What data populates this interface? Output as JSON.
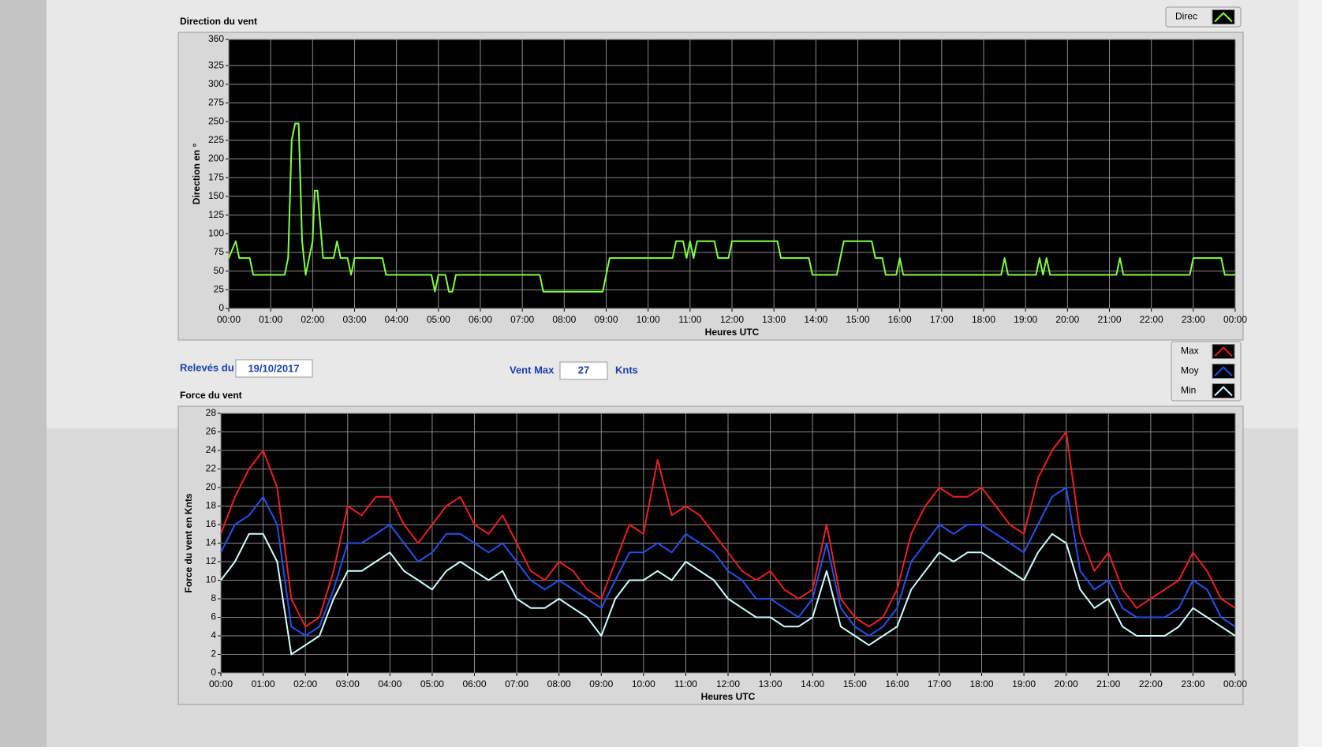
{
  "chart_data": [
    {
      "type": "line",
      "title": "Direction du vent",
      "xlabel": "Heures UTC",
      "ylabel": "Direction en °",
      "x": [
        0,
        10,
        15,
        30,
        35,
        80,
        85,
        90,
        95,
        100,
        105,
        110,
        115,
        120,
        123,
        127,
        135,
        150,
        155,
        160,
        170,
        175,
        180,
        220,
        225,
        290,
        295,
        300,
        310,
        315,
        320,
        325,
        445,
        450,
        535,
        545,
        635,
        640,
        650,
        655,
        660,
        665,
        670,
        695,
        700,
        715,
        720,
        785,
        790,
        830,
        835,
        870,
        875,
        880,
        920,
        925,
        935,
        940,
        955,
        960,
        965,
        1105,
        1110,
        1115,
        1155,
        1160,
        1165,
        1170,
        1175,
        1270,
        1275,
        1280,
        1375,
        1380,
        1420,
        1425,
        1440
      ],
      "series": [
        {
          "name": "Direc",
          "color": "#80ff40",
          "values": [
            67.5,
            90,
            67.5,
            67.5,
            45,
            45,
            67.5,
            225,
            247.5,
            247.5,
            90,
            45,
            67.5,
            90,
            157.5,
            157.5,
            67.5,
            67.5,
            90,
            67.5,
            67.5,
            45,
            67.5,
            67.5,
            45,
            45,
            22.5,
            45,
            45,
            22.5,
            22.5,
            45,
            45,
            22.5,
            22.5,
            67.5,
            67.5,
            90,
            90,
            67.5,
            90,
            67.5,
            90,
            90,
            67.5,
            67.5,
            90,
            90,
            67.5,
            67.5,
            45,
            45,
            67.5,
            90,
            90,
            67.5,
            67.5,
            45,
            45,
            67.5,
            45,
            45,
            67.5,
            45,
            45,
            67.5,
            45,
            67.5,
            45,
            45,
            67.5,
            45,
            45,
            67.5,
            67.5,
            45,
            45
          ]
        }
      ],
      "xlim": [
        0,
        1440
      ],
      "xticks": [
        {
          "value": 0,
          "label": "00:00"
        },
        {
          "value": 60,
          "label": "01:00"
        },
        {
          "value": 120,
          "label": "02:00"
        },
        {
          "value": 180,
          "label": "03:00"
        },
        {
          "value": 240,
          "label": "04:00"
        },
        {
          "value": 300,
          "label": "05:00"
        },
        {
          "value": 360,
          "label": "06:00"
        },
        {
          "value": 420,
          "label": "07:00"
        },
        {
          "value": 480,
          "label": "08:00"
        },
        {
          "value": 540,
          "label": "09:00"
        },
        {
          "value": 600,
          "label": "10:00"
        },
        {
          "value": 660,
          "label": "11:00"
        },
        {
          "value": 720,
          "label": "12:00"
        },
        {
          "value": 780,
          "label": "13:00"
        },
        {
          "value": 840,
          "label": "14:00"
        },
        {
          "value": 900,
          "label": "15:00"
        },
        {
          "value": 960,
          "label": "16:00"
        },
        {
          "value": 1020,
          "label": "17:00"
        },
        {
          "value": 1080,
          "label": "18:00"
        },
        {
          "value": 1140,
          "label": "19:00"
        },
        {
          "value": 1200,
          "label": "20:00"
        },
        {
          "value": 1260,
          "label": "21:00"
        },
        {
          "value": 1320,
          "label": "22:00"
        },
        {
          "value": 1380,
          "label": "23:00"
        },
        {
          "value": 1440,
          "label": "00:00"
        }
      ],
      "ylim": [
        0,
        360
      ],
      "yticks": [
        0,
        25,
        50,
        75,
        100,
        125,
        150,
        175,
        200,
        225,
        250,
        275,
        300,
        325,
        360
      ],
      "grid": true
    },
    {
      "type": "line",
      "title": "Force du vent",
      "xlabel": "Heures UTC",
      "ylabel": "Force du vent en Knts",
      "x": [
        0,
        20,
        40,
        60,
        80,
        100,
        120,
        140,
        160,
        180,
        200,
        220,
        240,
        260,
        280,
        300,
        320,
        340,
        360,
        380,
        400,
        420,
        440,
        460,
        480,
        500,
        520,
        540,
        560,
        580,
        600,
        620,
        640,
        660,
        680,
        700,
        720,
        740,
        760,
        780,
        800,
        820,
        840,
        860,
        880,
        900,
        920,
        940,
        960,
        980,
        1000,
        1020,
        1040,
        1060,
        1080,
        1100,
        1120,
        1140,
        1160,
        1180,
        1200,
        1220,
        1240,
        1260,
        1280,
        1300,
        1320,
        1340,
        1360,
        1380,
        1400,
        1420,
        1440
      ],
      "series": [
        {
          "name": "Max",
          "color": "#e82020",
          "values": [
            15,
            19,
            22,
            24,
            20,
            8,
            5,
            6,
            11,
            18,
            17,
            19,
            19,
            16,
            14,
            16,
            18,
            19,
            16,
            15,
            17,
            14,
            11,
            10,
            12,
            11,
            9,
            8,
            12,
            16,
            15,
            23,
            17,
            18,
            17,
            15,
            13,
            11,
            10,
            11,
            9,
            8,
            9,
            16,
            8,
            6,
            5,
            6,
            9,
            15,
            18,
            20,
            19,
            19,
            20,
            18,
            16,
            15,
            21,
            24,
            26,
            15,
            11,
            13,
            9,
            7,
            8,
            9,
            10,
            13,
            11,
            8,
            7
          ]
        },
        {
          "name": "Moy",
          "color": "#2850e8",
          "values": [
            13,
            16,
            17,
            19,
            16,
            5,
            4,
            5,
            9,
            14,
            14,
            15,
            16,
            14,
            12,
            13,
            15,
            15,
            14,
            13,
            14,
            12,
            10,
            9,
            10,
            9,
            8,
            7,
            10,
            13,
            13,
            14,
            13,
            15,
            14,
            13,
            11,
            10,
            8,
            8,
            7,
            6,
            8,
            14,
            7,
            5,
            4,
            5,
            7,
            12,
            14,
            16,
            15,
            16,
            16,
            15,
            14,
            13,
            16,
            19,
            20,
            11,
            9,
            10,
            7,
            6,
            6,
            6,
            7,
            10,
            9,
            6,
            5
          ]
        },
        {
          "name": "Min",
          "color": "#d0ffff",
          "values": [
            10,
            12,
            15,
            15,
            12,
            2,
            3,
            4,
            8,
            11,
            11,
            12,
            13,
            11,
            10,
            9,
            11,
            12,
            11,
            10,
            11,
            8,
            7,
            7,
            8,
            7,
            6,
            4,
            8,
            10,
            10,
            11,
            10,
            12,
            11,
            10,
            8,
            7,
            6,
            6,
            5,
            5,
            6,
            11,
            5,
            4,
            3,
            4,
            5,
            9,
            11,
            13,
            12,
            13,
            13,
            12,
            11,
            10,
            13,
            15,
            14,
            9,
            7,
            8,
            5,
            4,
            4,
            4,
            5,
            7,
            6,
            5,
            4
          ]
        }
      ],
      "xlim": [
        0,
        1440
      ],
      "xticks": [
        {
          "value": 0,
          "label": "00:00"
        },
        {
          "value": 60,
          "label": "01:00"
        },
        {
          "value": 120,
          "label": "02:00"
        },
        {
          "value": 180,
          "label": "03:00"
        },
        {
          "value": 240,
          "label": "04:00"
        },
        {
          "value": 300,
          "label": "05:00"
        },
        {
          "value": 360,
          "label": "06:00"
        },
        {
          "value": 420,
          "label": "07:00"
        },
        {
          "value": 480,
          "label": "08:00"
        },
        {
          "value": 540,
          "label": "09:00"
        },
        {
          "value": 600,
          "label": "10:00"
        },
        {
          "value": 660,
          "label": "11:00"
        },
        {
          "value": 720,
          "label": "12:00"
        },
        {
          "value": 780,
          "label": "13:00"
        },
        {
          "value": 840,
          "label": "14:00"
        },
        {
          "value": 900,
          "label": "15:00"
        },
        {
          "value": 960,
          "label": "16:00"
        },
        {
          "value": 1020,
          "label": "17:00"
        },
        {
          "value": 1080,
          "label": "18:00"
        },
        {
          "value": 1140,
          "label": "19:00"
        },
        {
          "value": 1200,
          "label": "20:00"
        },
        {
          "value": 1260,
          "label": "21:00"
        },
        {
          "value": 1320,
          "label": "22:00"
        },
        {
          "value": 1380,
          "label": "23:00"
        },
        {
          "value": 1440,
          "label": "00:00"
        }
      ],
      "ylim": [
        0,
        28
      ],
      "yticks": [
        0,
        2,
        4,
        6,
        8,
        10,
        12,
        14,
        16,
        18,
        20,
        22,
        24,
        26,
        28
      ],
      "grid": true
    }
  ],
  "form": {
    "date_label": "Relevés du",
    "date": "19/10/2017",
    "max_label": "Vent Max",
    "max_value": 27,
    "max_unit": "Knts"
  }
}
